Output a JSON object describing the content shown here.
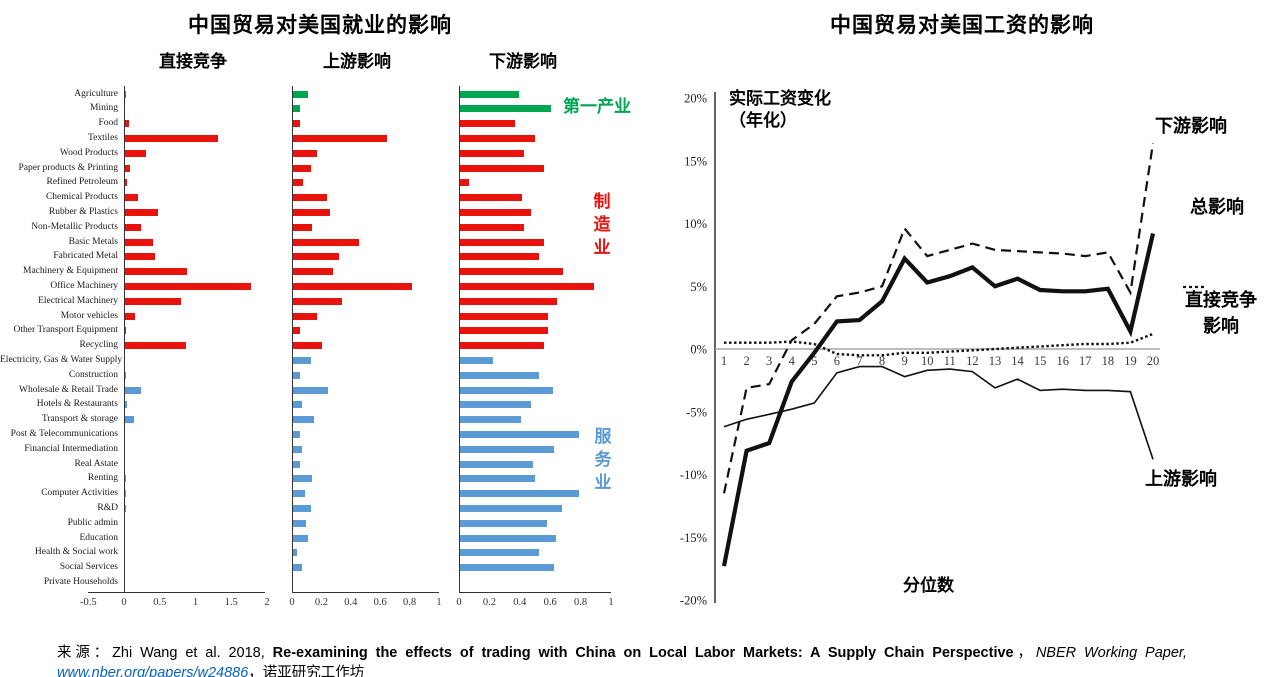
{
  "colors": {
    "primary_green": "#00a550",
    "manufacturing_red": "#e8130c",
    "services_blue": "#5b9bd5",
    "line_black": "#111111",
    "zero_line_gray": "#a6a6a6",
    "link_blue": "#0563c1"
  },
  "employment_figure": {
    "title": "中国贸易对美国就业的影响",
    "sector_annotations": {
      "primary": "第一产业",
      "manufacturing": "制\n造\n业",
      "services": "服\n务\n业"
    },
    "sector_split": {
      "primary_end": 2,
      "manufacturing_end": 18
    }
  },
  "wage_figure": {
    "title": "中国贸易对美国工资的影响",
    "y_annotation": "实际工资变化\n（年化）",
    "x_annotation": "分位数",
    "series_labels": {
      "downstream": "下游影响",
      "total": "总影响",
      "direct": "直接竞争\n影响",
      "upstream": "上游影响"
    }
  },
  "chart_data": [
    {
      "type": "bar",
      "orientation": "horizontal",
      "title": "直接竞争",
      "categories": [
        "Agriculture",
        "Mining",
        "Food",
        "Textiles",
        "Wood Products",
        "Paper products & Printing",
        "Refined Petroleum",
        "Chemical Products",
        "Rubber & Plastics",
        "Non-Metallic Products",
        "Basic Metals",
        "Fabricated Metal",
        "Machinery & Equipment",
        "Office Machinery",
        "Electrical Machinery",
        "Motor vehicles",
        "Other Transport Equipment",
        "Recycling",
        "Electricity, Gas & Water Supply",
        "Construction",
        "Wholesale & Retail Trade",
        "Hotels & Restaurants",
        "Transport & storage",
        "Post & Telecommunications",
        "Financial Intermediation",
        "Real Astate",
        "Renting",
        "Computer Activities",
        "R&D",
        "Public admin",
        "Education",
        "Health & Social work",
        "Social Services",
        "Private Households"
      ],
      "values": [
        0.02,
        0,
        0.06,
        1.3,
        0.29,
        0.07,
        0.03,
        0.18,
        0.46,
        0.22,
        0.39,
        0.42,
        0.87,
        1.76,
        0.78,
        0.14,
        0.02,
        0.85,
        0,
        0.01,
        0.22,
        0.03,
        0.12,
        0,
        0,
        0,
        0.02,
        0.02,
        0.02,
        0,
        0,
        0,
        0,
        0
      ],
      "xlim": [
        -0.5,
        2
      ],
      "xticks": [
        -0.5,
        0,
        0.5,
        1,
        1.5,
        2
      ]
    },
    {
      "type": "bar",
      "orientation": "horizontal",
      "title": "上游影响",
      "values": [
        0.1,
        0.05,
        0.05,
        0.64,
        0.16,
        0.12,
        0.07,
        0.23,
        0.25,
        0.13,
        0.45,
        0.31,
        0.27,
        0.81,
        0.33,
        0.16,
        0.05,
        0.2,
        0.12,
        0.05,
        0.24,
        0.06,
        0.14,
        0.05,
        0.06,
        0.05,
        0.13,
        0.08,
        0.12,
        0.09,
        0.1,
        0.03,
        0.06,
        0
      ],
      "xlim": [
        0,
        1
      ],
      "xticks": [
        0,
        0.2,
        0.4,
        0.6,
        0.8,
        1
      ]
    },
    {
      "type": "bar",
      "orientation": "horizontal",
      "title": "下游影响",
      "values": [
        0.39,
        0.6,
        0.36,
        0.49,
        0.42,
        0.55,
        0.06,
        0.41,
        0.47,
        0.42,
        0.55,
        0.52,
        0.68,
        0.88,
        0.64,
        0.58,
        0.58,
        0.55,
        0.22,
        0.52,
        0.61,
        0.47,
        0.4,
        0.78,
        0.62,
        0.48,
        0.49,
        0.78,
        0.67,
        0.57,
        0.63,
        0.52,
        0.62,
        0
      ],
      "xlim": [
        0,
        1
      ],
      "xticks": [
        0,
        0.2,
        0.4,
        0.6,
        0.8,
        1
      ]
    },
    {
      "type": "line",
      "title": "中国贸易对美国工资的影响",
      "xlabel": "分位数",
      "ylabel": "实际工资变化（年化）",
      "x": [
        1,
        2,
        3,
        4,
        5,
        6,
        7,
        8,
        9,
        10,
        11,
        12,
        13,
        14,
        15,
        16,
        17,
        18,
        19,
        20
      ],
      "ylim": [
        -20,
        20
      ],
      "ytick_labels": [
        "20%",
        "15%",
        "10%",
        "5%",
        "0%",
        "-5%",
        "-10%",
        "-15%",
        "-20%"
      ],
      "grid": false,
      "series": [
        {
          "name": "下游影响",
          "style": "dashed",
          "values": [
            -11.5,
            -3.1,
            -2.8,
            0.7,
            2.0,
            4.2,
            4.5,
            5.0,
            9.6,
            7.4,
            7.9,
            8.4,
            7.9,
            7.8,
            7.7,
            7.6,
            7.4,
            7.7,
            4.5,
            16.4
          ]
        },
        {
          "name": "总影响",
          "style": "thick-solid",
          "values": [
            -17.3,
            -8.1,
            -7.5,
            -2.6,
            -0.3,
            2.2,
            2.3,
            3.8,
            7.2,
            5.3,
            5.8,
            6.5,
            5.0,
            5.6,
            4.7,
            4.6,
            4.6,
            4.8,
            1.4,
            9.2
          ]
        },
        {
          "name": "直接竞争影响",
          "style": "dotted",
          "values": [
            0.5,
            0.5,
            0.5,
            0.6,
            0.4,
            -0.4,
            -0.5,
            -0.5,
            -0.3,
            -0.3,
            -0.2,
            -0.1,
            0.0,
            0.1,
            0.2,
            0.3,
            0.4,
            0.4,
            0.5,
            1.2
          ]
        },
        {
          "name": "上游影响",
          "style": "thin-solid",
          "values": [
            -6.2,
            -5.6,
            -5.2,
            -4.8,
            -4.3,
            -1.9,
            -1.4,
            -1.4,
            -2.2,
            -1.7,
            -1.6,
            -1.8,
            -3.1,
            -2.4,
            -3.3,
            -3.2,
            -3.3,
            -3.3,
            -3.4,
            -8.8
          ]
        }
      ]
    }
  ],
  "source": {
    "prefix": "来源：Zhi Wang et al. 2018, ",
    "paper_title": "Re-examining the effects of trading with China on Local Labor Markets: A Supply Chain Perspective",
    "sep1": "，",
    "journal": "NBER Working Paper, ",
    "url": "www.nber.org/papers/w24886",
    "suffix": "，诺亚研究工作坊"
  }
}
